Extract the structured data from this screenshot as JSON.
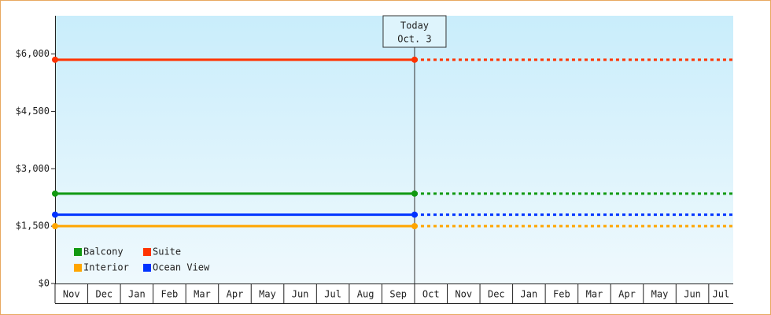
{
  "chart_data": {
    "type": "line",
    "categories": [
      "Nov",
      "Dec",
      "Jan",
      "Feb",
      "Mar",
      "Apr",
      "May",
      "Jun",
      "Jul",
      "Aug",
      "Sep",
      "Oct",
      "Nov",
      "Dec",
      "Jan",
      "Feb",
      "Mar",
      "Apr",
      "May",
      "Jun",
      "Jul"
    ],
    "series": [
      {
        "name": "Balcony",
        "color": "#119911",
        "values": [
          2350,
          2350,
          2350,
          2350,
          2350,
          2350,
          2350,
          2350,
          2350,
          2350,
          2350,
          2350,
          2350,
          2350,
          2350,
          2350,
          2350,
          2350,
          2350,
          2350,
          2350
        ]
      },
      {
        "name": "Suite",
        "color": "#ff3300",
        "values": [
          5850,
          5850,
          5850,
          5850,
          5850,
          5850,
          5850,
          5850,
          5850,
          5850,
          5850,
          5850,
          5850,
          5850,
          5850,
          5850,
          5850,
          5850,
          5850,
          5850,
          5850
        ]
      },
      {
        "name": "Interior",
        "color": "#ffa500",
        "values": [
          1500,
          1500,
          1500,
          1500,
          1500,
          1500,
          1500,
          1500,
          1500,
          1500,
          1500,
          1500,
          1500,
          1500,
          1500,
          1500,
          1500,
          1500,
          1500,
          1500,
          1500
        ]
      },
      {
        "name": "Ocean View",
        "color": "#0033ff",
        "values": [
          1800,
          1800,
          1800,
          1800,
          1800,
          1800,
          1800,
          1800,
          1800,
          1800,
          1800,
          1800,
          1800,
          1800,
          1800,
          1800,
          1800,
          1800,
          1800,
          1800,
          1800
        ]
      }
    ],
    "ylim": [
      0,
      7000
    ],
    "yticks": [
      {
        "value": 0,
        "label": "$0"
      },
      {
        "value": 1500,
        "label": "$1,500"
      },
      {
        "value": 3000,
        "label": "$3,000"
      },
      {
        "value": 4500,
        "label": "$4,500"
      },
      {
        "value": 6000,
        "label": "$6,000"
      }
    ],
    "annotation": {
      "label": [
        "Today",
        "Oct. 3"
      ],
      "at": 11
    },
    "legend": "bottom-left"
  }
}
